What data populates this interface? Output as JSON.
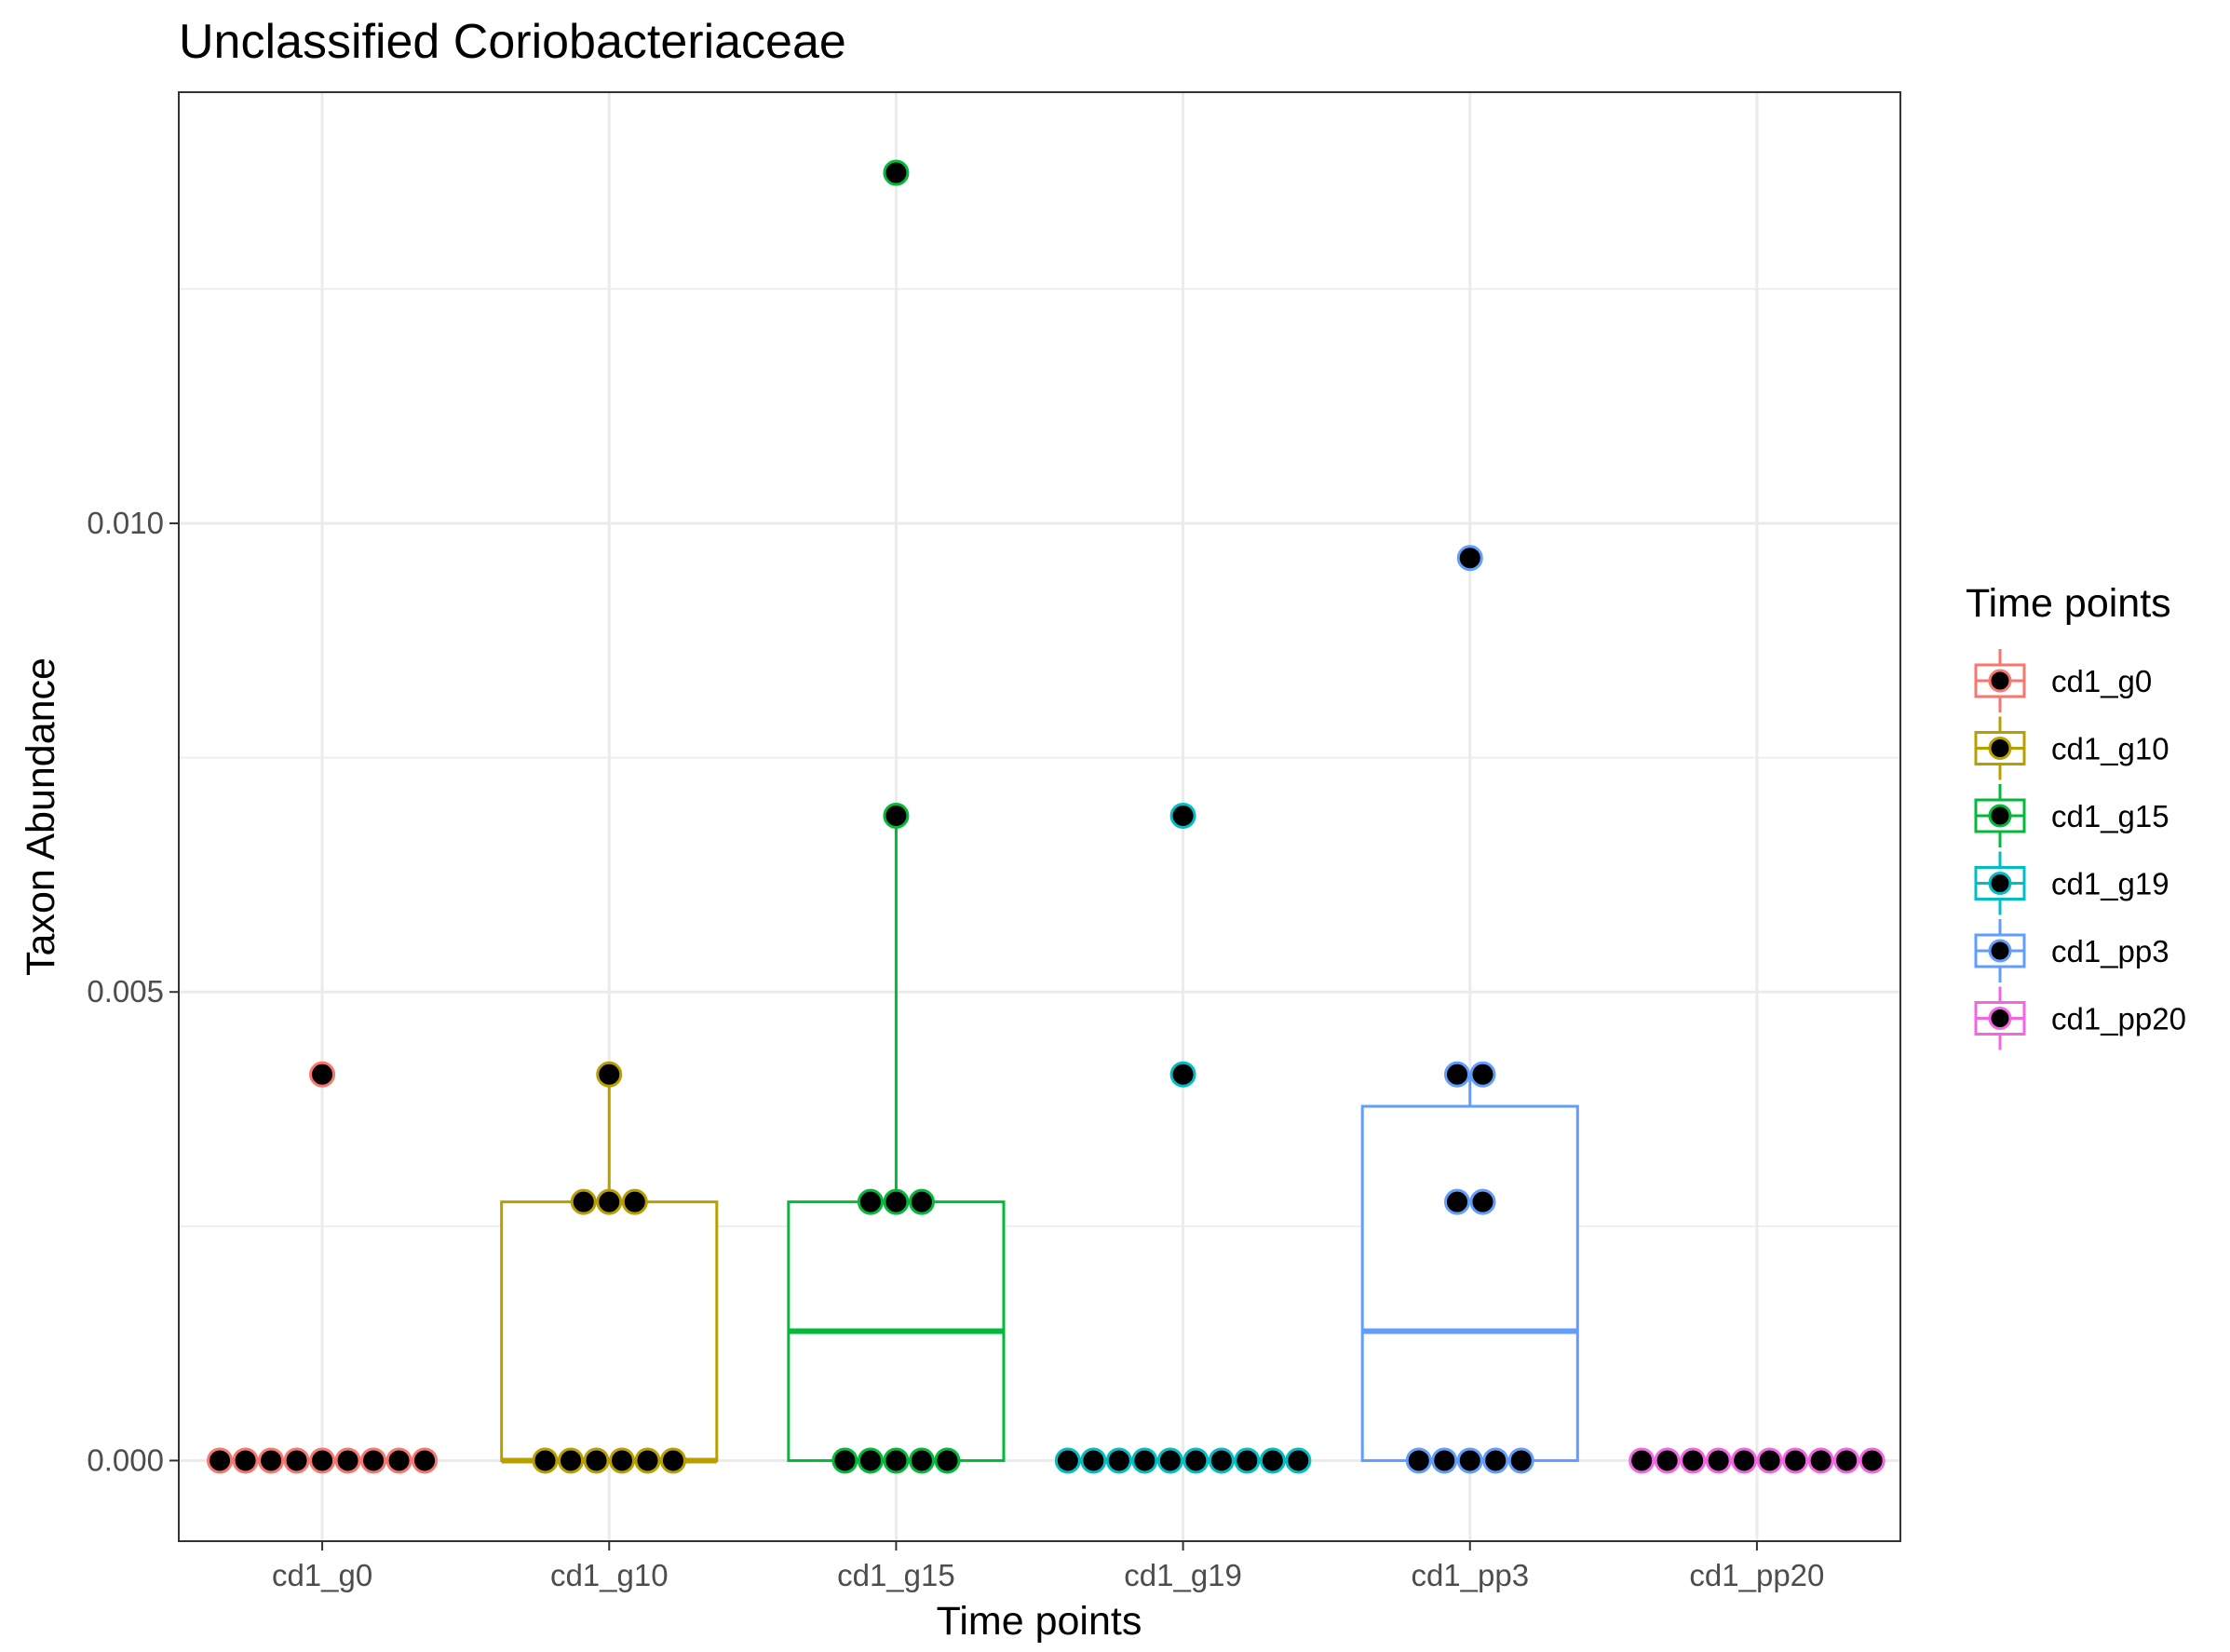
{
  "chart_data": {
    "type": "box",
    "title": "Unclassified Coriobacteriaceae",
    "xlabel": "Time points",
    "ylabel": "Taxon Abundance",
    "ylim": [
      -0.00086,
      0.0146
    ],
    "y_ticks": [
      0.0,
      0.005,
      0.01
    ],
    "y_tick_labels": [
      "0.000",
      "0.005",
      "0.010"
    ],
    "grid": true,
    "legend": {
      "title": "Time points",
      "position": "right"
    },
    "categories": [
      "cd1_g0",
      "cd1_g10",
      "cd1_g15",
      "cd1_g19",
      "cd1_pp3",
      "cd1_pp20"
    ],
    "series": [
      {
        "name": "cd1_g0",
        "color": "#F8766D",
        "box": {
          "q1": 0.0,
          "median": 0.0,
          "q3": 0.0,
          "whisker_low": 0.0,
          "whisker_high": 0.0
        },
        "points": [
          0.00412,
          0,
          0,
          0,
          0,
          0,
          0,
          0,
          0,
          0
        ]
      },
      {
        "name": "cd1_g10",
        "color": "#B79F00",
        "box": {
          "q1": 0.0,
          "median": 0.0,
          "q3": 0.00276,
          "whisker_low": 0.0,
          "whisker_high": 0.00412
        },
        "points": [
          0.00412,
          0.00276,
          0.00276,
          0.00276,
          0,
          0,
          0,
          0,
          0,
          0
        ]
      },
      {
        "name": "cd1_g15",
        "color": "#00BA38",
        "box": {
          "q1": 0.0,
          "median": 0.00138,
          "q3": 0.00276,
          "whisker_low": 0.0,
          "whisker_high": 0.00688
        },
        "points": [
          0.01374,
          0.00688,
          0.00276,
          0.00276,
          0.00276,
          0,
          0,
          0,
          0,
          0
        ]
      },
      {
        "name": "cd1_g19",
        "color": "#00BFC4",
        "box": {
          "q1": 0.0,
          "median": 0.0,
          "q3": 0.0,
          "whisker_low": 0.0,
          "whisker_high": 0.0
        },
        "points": [
          0.00688,
          0.00412,
          0,
          0,
          0,
          0,
          0,
          0,
          0,
          0,
          0,
          0
        ]
      },
      {
        "name": "cd1_pp3",
        "color": "#619CFF",
        "box": {
          "q1": 0.0,
          "median": 0.00138,
          "q3": 0.00378,
          "whisker_low": 0.0,
          "whisker_high": 0.00412
        },
        "points": [
          0.00963,
          0.00412,
          0.00412,
          0.00276,
          0.00276,
          0,
          0,
          0,
          0,
          0
        ]
      },
      {
        "name": "cd1_pp20",
        "color": "#F564E3",
        "box": {
          "q1": 0.0,
          "median": 0.0,
          "q3": 0.0,
          "whisker_low": 0.0,
          "whisker_high": 0.0
        },
        "points": [
          0,
          0,
          0,
          0,
          0,
          0,
          0,
          0,
          0,
          0
        ]
      }
    ]
  }
}
